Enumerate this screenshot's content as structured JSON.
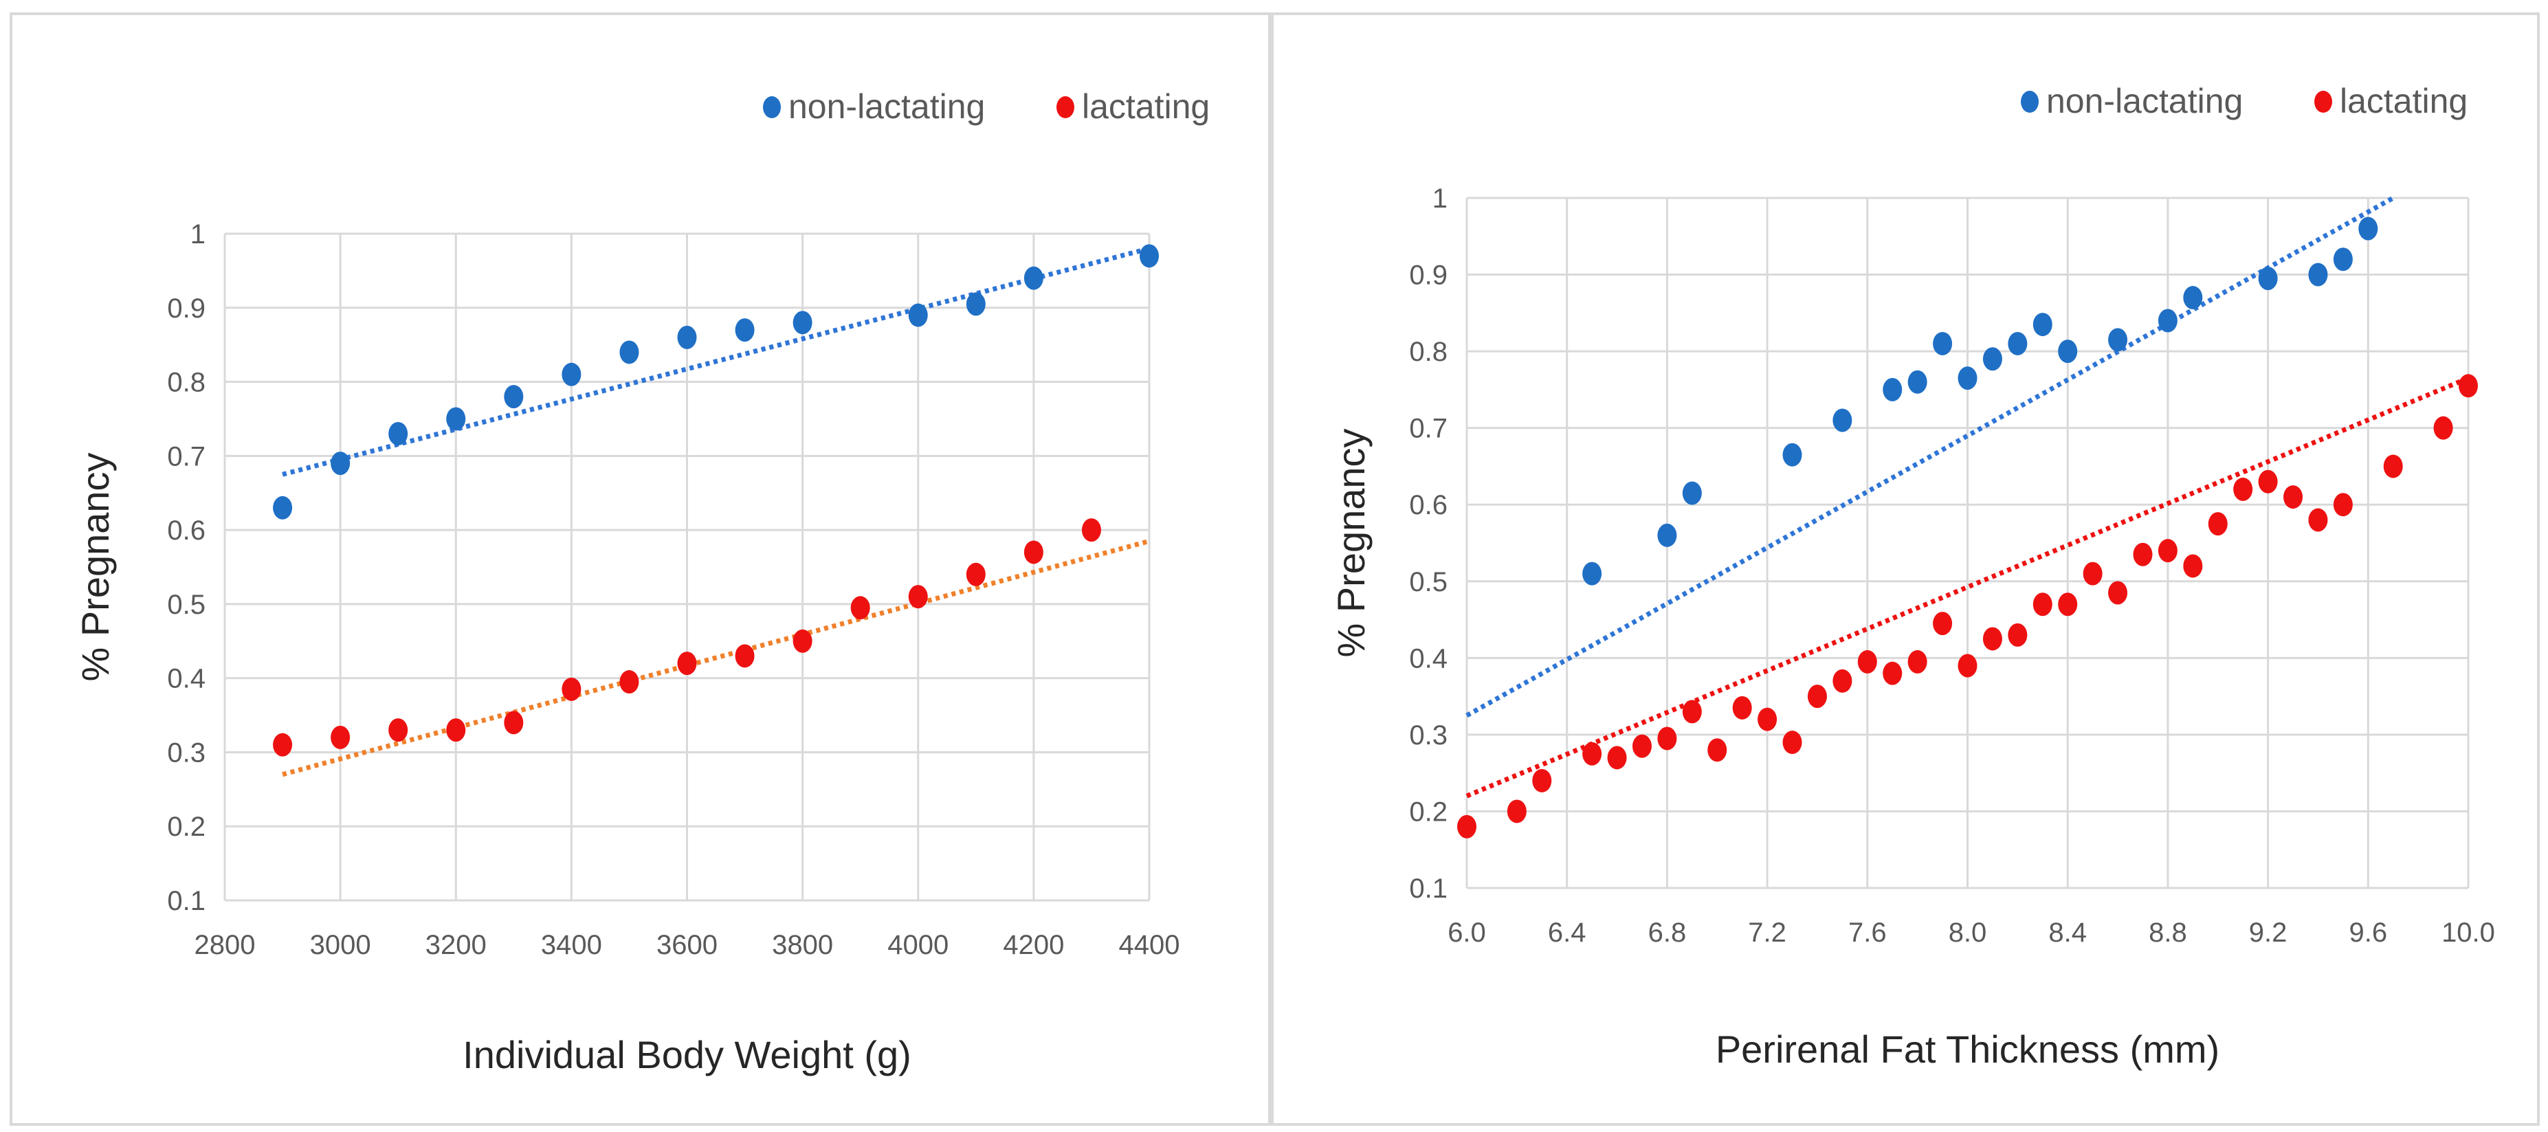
{
  "chart_data": [
    {
      "type": "scatter",
      "xlabel": "Individual Body Weight (g)",
      "ylabel": "% Pregnancy",
      "xlim": [
        2800,
        4400
      ],
      "ylim": [
        0.1,
        1.0
      ],
      "x_ticks": [
        "2800",
        "3000",
        "3200",
        "3400",
        "3600",
        "3800",
        "4000",
        "4200",
        "4400"
      ],
      "y_ticks": [
        "0.1",
        "0.2",
        "0.3",
        "0.4",
        "0.5",
        "0.6",
        "0.7",
        "0.8",
        "0.9",
        "1"
      ],
      "grid": true,
      "legend": "top-right",
      "series": [
        {
          "name": "non-lactating",
          "color": "#1f6fc5",
          "trend_color": "#2e75d6",
          "trendline": [
            [
              2900,
              0.675
            ],
            [
              4400,
              0.98
            ]
          ],
          "points": [
            [
              2900,
              0.63
            ],
            [
              3000,
              0.69
            ],
            [
              3100,
              0.73
            ],
            [
              3200,
              0.75
            ],
            [
              3300,
              0.78
            ],
            [
              3400,
              0.81
            ],
            [
              3500,
              0.84
            ],
            [
              3600,
              0.86
            ],
            [
              3700,
              0.87
            ],
            [
              3800,
              0.88
            ],
            [
              4000,
              0.89
            ],
            [
              4100,
              0.905
            ],
            [
              4200,
              0.94
            ],
            [
              4400,
              0.97
            ]
          ]
        },
        {
          "name": "lactating",
          "color": "#ee1111",
          "trend_color": "#f0802a",
          "trendline": [
            [
              2900,
              0.27
            ],
            [
              4400,
              0.585
            ]
          ],
          "points": [
            [
              2900,
              0.31
            ],
            [
              3000,
              0.32
            ],
            [
              3100,
              0.33
            ],
            [
              3200,
              0.33
            ],
            [
              3300,
              0.34
            ],
            [
              3400,
              0.385
            ],
            [
              3500,
              0.395
            ],
            [
              3600,
              0.42
            ],
            [
              3700,
              0.43
            ],
            [
              3800,
              0.45
            ],
            [
              3900,
              0.495
            ],
            [
              4000,
              0.51
            ],
            [
              4100,
              0.54
            ],
            [
              4200,
              0.57
            ],
            [
              4300,
              0.6
            ]
          ]
        }
      ]
    },
    {
      "type": "scatter",
      "xlabel": "Perirenal Fat Thickness (mm)",
      "ylabel": "% Pregnancy",
      "xlim": [
        6.0,
        10.0
      ],
      "ylim": [
        0.1,
        1.0
      ],
      "x_ticks": [
        "6.0",
        "6.4",
        "6.8",
        "7.2",
        "7.6",
        "8.0",
        "8.4",
        "8.8",
        "9.2",
        "9.6",
        "10.0"
      ],
      "y_ticks": [
        "0.1",
        "0.2",
        "0.3",
        "0.4",
        "0.5",
        "0.6",
        "0.7",
        "0.8",
        "0.9",
        "1"
      ],
      "grid": true,
      "legend": "top-right",
      "series": [
        {
          "name": "non-lactating",
          "color": "#1f6fc5",
          "trend_color": "#2e75d6",
          "trendline": [
            [
              6.0,
              0.325
            ],
            [
              9.7,
              1.0
            ]
          ],
          "points": [
            [
              6.5,
              0.51
            ],
            [
              6.8,
              0.56
            ],
            [
              6.9,
              0.615
            ],
            [
              7.3,
              0.665
            ],
            [
              7.5,
              0.71
            ],
            [
              7.7,
              0.75
            ],
            [
              7.8,
              0.76
            ],
            [
              7.9,
              0.81
            ],
            [
              8.0,
              0.765
            ],
            [
              8.1,
              0.79
            ],
            [
              8.2,
              0.81
            ],
            [
              8.3,
              0.835
            ],
            [
              8.4,
              0.8
            ],
            [
              8.6,
              0.815
            ],
            [
              8.8,
              0.84
            ],
            [
              8.9,
              0.87
            ],
            [
              9.2,
              0.895
            ],
            [
              9.4,
              0.9
            ],
            [
              9.5,
              0.92
            ],
            [
              9.6,
              0.96
            ]
          ]
        },
        {
          "name": "lactating",
          "color": "#ee1111",
          "trend_color": "#ee1111",
          "trendline": [
            [
              6.0,
              0.22
            ],
            [
              10.0,
              0.765
            ]
          ],
          "points": [
            [
              6.0,
              0.18
            ],
            [
              6.2,
              0.2
            ],
            [
              6.3,
              0.24
            ],
            [
              6.5,
              0.275
            ],
            [
              6.6,
              0.27
            ],
            [
              6.7,
              0.285
            ],
            [
              6.8,
              0.295
            ],
            [
              6.9,
              0.33
            ],
            [
              7.0,
              0.28
            ],
            [
              7.1,
              0.335
            ],
            [
              7.2,
              0.32
            ],
            [
              7.3,
              0.29
            ],
            [
              7.4,
              0.35
            ],
            [
              7.5,
              0.37
            ],
            [
              7.6,
              0.395
            ],
            [
              7.7,
              0.38
            ],
            [
              7.8,
              0.395
            ],
            [
              7.9,
              0.445
            ],
            [
              8.0,
              0.39
            ],
            [
              8.1,
              0.425
            ],
            [
              8.2,
              0.43
            ],
            [
              8.3,
              0.47
            ],
            [
              8.4,
              0.47
            ],
            [
              8.5,
              0.51
            ],
            [
              8.6,
              0.485
            ],
            [
              8.7,
              0.535
            ],
            [
              8.8,
              0.54
            ],
            [
              8.9,
              0.52
            ],
            [
              9.0,
              0.575
            ],
            [
              9.1,
              0.62
            ],
            [
              9.2,
              0.63
            ],
            [
              9.3,
              0.61
            ],
            [
              9.4,
              0.58
            ],
            [
              9.5,
              0.6
            ],
            [
              9.7,
              0.65
            ],
            [
              9.9,
              0.7
            ],
            [
              10.0,
              0.755
            ]
          ]
        }
      ]
    }
  ]
}
